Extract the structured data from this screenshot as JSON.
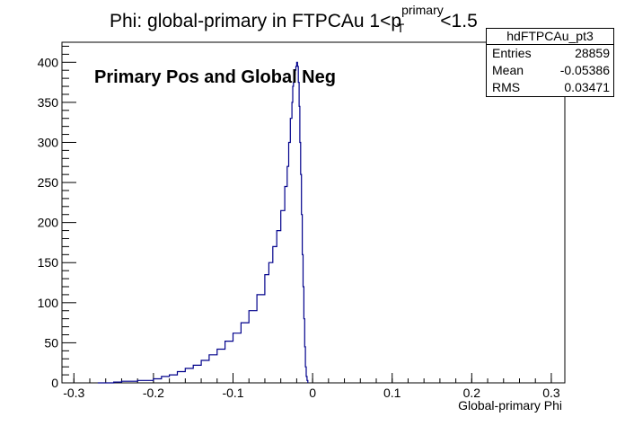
{
  "chart_data": {
    "type": "histogram",
    "title_main": "Phi: global-primary in FTPCAu 1<p",
    "title_sup": "primary",
    "title_sub": "T",
    "title_tail": "<1.5",
    "annotation": "Primary Pos and Global Neg",
    "xlabel": "Global-primary Phi",
    "xlim": [
      -0.315,
      0.317
    ],
    "ylim": [
      0,
      425
    ],
    "xticks": [
      -0.3,
      -0.2,
      -0.1,
      0,
      0.1,
      0.2,
      0.3
    ],
    "xtick_labels": [
      "-0.3",
      "-0.2",
      "-0.1",
      "0",
      "0.1",
      "0.2",
      "0.3"
    ],
    "yticks": [
      0,
      50,
      100,
      150,
      200,
      250,
      300,
      350,
      400
    ],
    "ytick_labels": [
      "0",
      "50",
      "100",
      "150",
      "200",
      "250",
      "300",
      "350",
      "400"
    ],
    "line_color": "#00008b",
    "series": [
      {
        "points": [
          [
            -0.27,
            0
          ],
          [
            -0.25,
            1
          ],
          [
            -0.24,
            2
          ],
          [
            -0.22,
            3
          ],
          [
            -0.2,
            5
          ],
          [
            -0.19,
            8
          ],
          [
            -0.18,
            10
          ],
          [
            -0.17,
            14
          ],
          [
            -0.16,
            18
          ],
          [
            -0.15,
            22
          ],
          [
            -0.14,
            28
          ],
          [
            -0.13,
            35
          ],
          [
            -0.12,
            42
          ],
          [
            -0.11,
            52
          ],
          [
            -0.1,
            62
          ],
          [
            -0.09,
            75
          ],
          [
            -0.08,
            90
          ],
          [
            -0.07,
            110
          ],
          [
            -0.06,
            135
          ],
          [
            -0.055,
            150
          ],
          [
            -0.05,
            170
          ],
          [
            -0.045,
            190
          ],
          [
            -0.04,
            215
          ],
          [
            -0.035,
            245
          ],
          [
            -0.032,
            270
          ],
          [
            -0.03,
            300
          ],
          [
            -0.028,
            330
          ],
          [
            -0.026,
            350
          ],
          [
            -0.025,
            370
          ],
          [
            -0.024,
            375
          ],
          [
            -0.023,
            385
          ],
          [
            -0.022,
            390
          ],
          [
            -0.021,
            395
          ],
          [
            -0.02,
            400
          ],
          [
            -0.019,
            395
          ],
          [
            -0.018,
            375
          ],
          [
            -0.017,
            345
          ],
          [
            -0.016,
            300
          ],
          [
            -0.015,
            260
          ],
          [
            -0.014,
            210
          ],
          [
            -0.013,
            160
          ],
          [
            -0.012,
            120
          ],
          [
            -0.011,
            80
          ],
          [
            -0.01,
            45
          ],
          [
            -0.009,
            20
          ],
          [
            -0.008,
            8
          ],
          [
            -0.007,
            3
          ],
          [
            -0.006,
            0
          ]
        ]
      }
    ]
  },
  "stats": {
    "name": "hdFTPCAu_pt3",
    "entries_label": "Entries",
    "entries": "28859",
    "mean_label": "Mean",
    "mean": "-0.05386",
    "rms_label": "RMS",
    "rms": "0.03471"
  }
}
